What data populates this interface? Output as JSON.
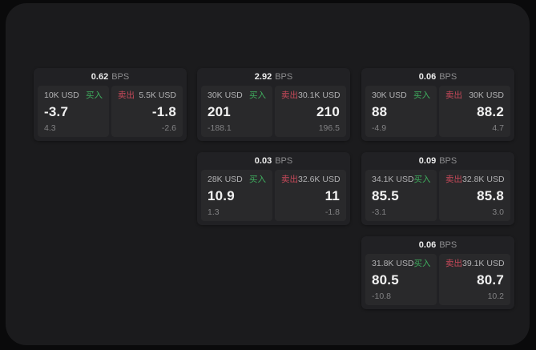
{
  "labels": {
    "bps_unit": "BPS",
    "buy": "买入",
    "sell": "卖出"
  },
  "colors": {
    "background": "#0a0a0b",
    "panel": "#1b1b1d",
    "card": "#212124",
    "pane": "#29292b",
    "buy_green": "#3fae5e",
    "sell_red": "#c8495a"
  },
  "cards": [
    {
      "bps": "0.62",
      "buy": {
        "amount": "10K USD",
        "price": "-3.7",
        "delta": "4.3"
      },
      "sell": {
        "amount": "5.5K USD",
        "price": "-1.8",
        "delta": "-2.6"
      }
    },
    {
      "bps": "2.92",
      "buy": {
        "amount": "30K USD",
        "price": "201",
        "delta": "-188.1"
      },
      "sell": {
        "amount": "30.1K USD",
        "price": "210",
        "delta": "196.5"
      }
    },
    {
      "bps": "0.06",
      "buy": {
        "amount": "30K USD",
        "price": "88",
        "delta": "-4.9"
      },
      "sell": {
        "amount": "30K USD",
        "price": "88.2",
        "delta": "4.7"
      }
    },
    {
      "bps": "0.03",
      "buy": {
        "amount": "28K USD",
        "price": "10.9",
        "delta": "1.3"
      },
      "sell": {
        "amount": "32.6K USD",
        "price": "11",
        "delta": "-1.8"
      }
    },
    {
      "bps": "0.09",
      "buy": {
        "amount": "34.1K USD",
        "price": "85.5",
        "delta": "-3.1"
      },
      "sell": {
        "amount": "32.8K USD",
        "price": "85.8",
        "delta": "3.0"
      }
    },
    {
      "bps": "0.06",
      "buy": {
        "amount": "31.8K USD",
        "price": "80.5",
        "delta": "-10.8"
      },
      "sell": {
        "amount": "39.1K USD",
        "price": "80.7",
        "delta": "10.2"
      }
    }
  ]
}
